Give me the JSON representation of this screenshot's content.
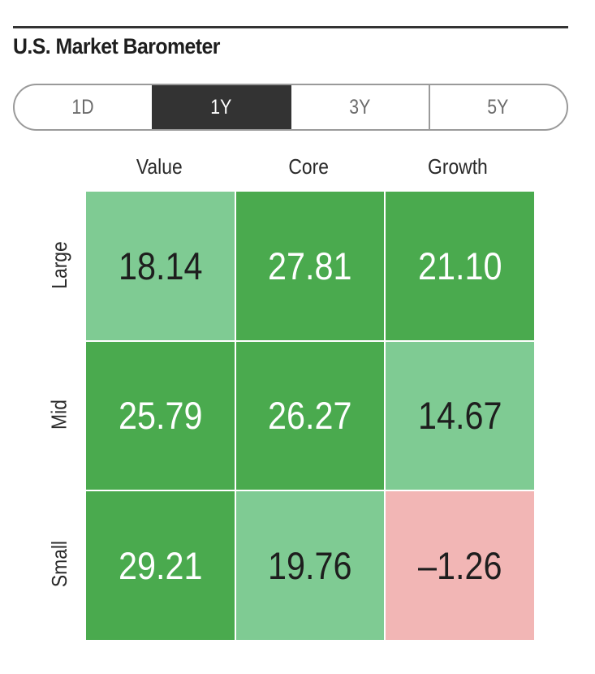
{
  "title": "U.S. Market Barometer",
  "tabs": [
    {
      "label": "1D",
      "active": false
    },
    {
      "label": "1Y",
      "active": true
    },
    {
      "label": "3Y",
      "active": false
    },
    {
      "label": "5Y",
      "active": false
    }
  ],
  "columns": [
    "Value",
    "Core",
    "Growth"
  ],
  "rows": [
    "Large",
    "Mid",
    "Small"
  ],
  "cells": [
    [
      {
        "value": "18.14",
        "color": "#7fcb93",
        "text_color": "#1e1e1e"
      },
      {
        "value": "27.81",
        "color": "#4aaa4e",
        "text_color": "#ffffff"
      },
      {
        "value": "21.10",
        "color": "#4aaa4e",
        "text_color": "#ffffff"
      }
    ],
    [
      {
        "value": "25.79",
        "color": "#4aaa4e",
        "text_color": "#ffffff"
      },
      {
        "value": "26.27",
        "color": "#4aaa4e",
        "text_color": "#ffffff"
      },
      {
        "value": "14.67",
        "color": "#7fcb93",
        "text_color": "#1e1e1e"
      }
    ],
    [
      {
        "value": "29.21",
        "color": "#4aaa4e",
        "text_color": "#ffffff"
      },
      {
        "value": "19.76",
        "color": "#7fcb93",
        "text_color": "#1e1e1e"
      },
      {
        "value": "–1.26",
        "color": "#f2b6b5",
        "text_color": "#1e1e1e"
      }
    ]
  ],
  "colors": {
    "strong_positive": "#4aaa4e",
    "positive": "#7fcb93",
    "negative": "#f2b6b5",
    "active_tab": "#333333"
  }
}
